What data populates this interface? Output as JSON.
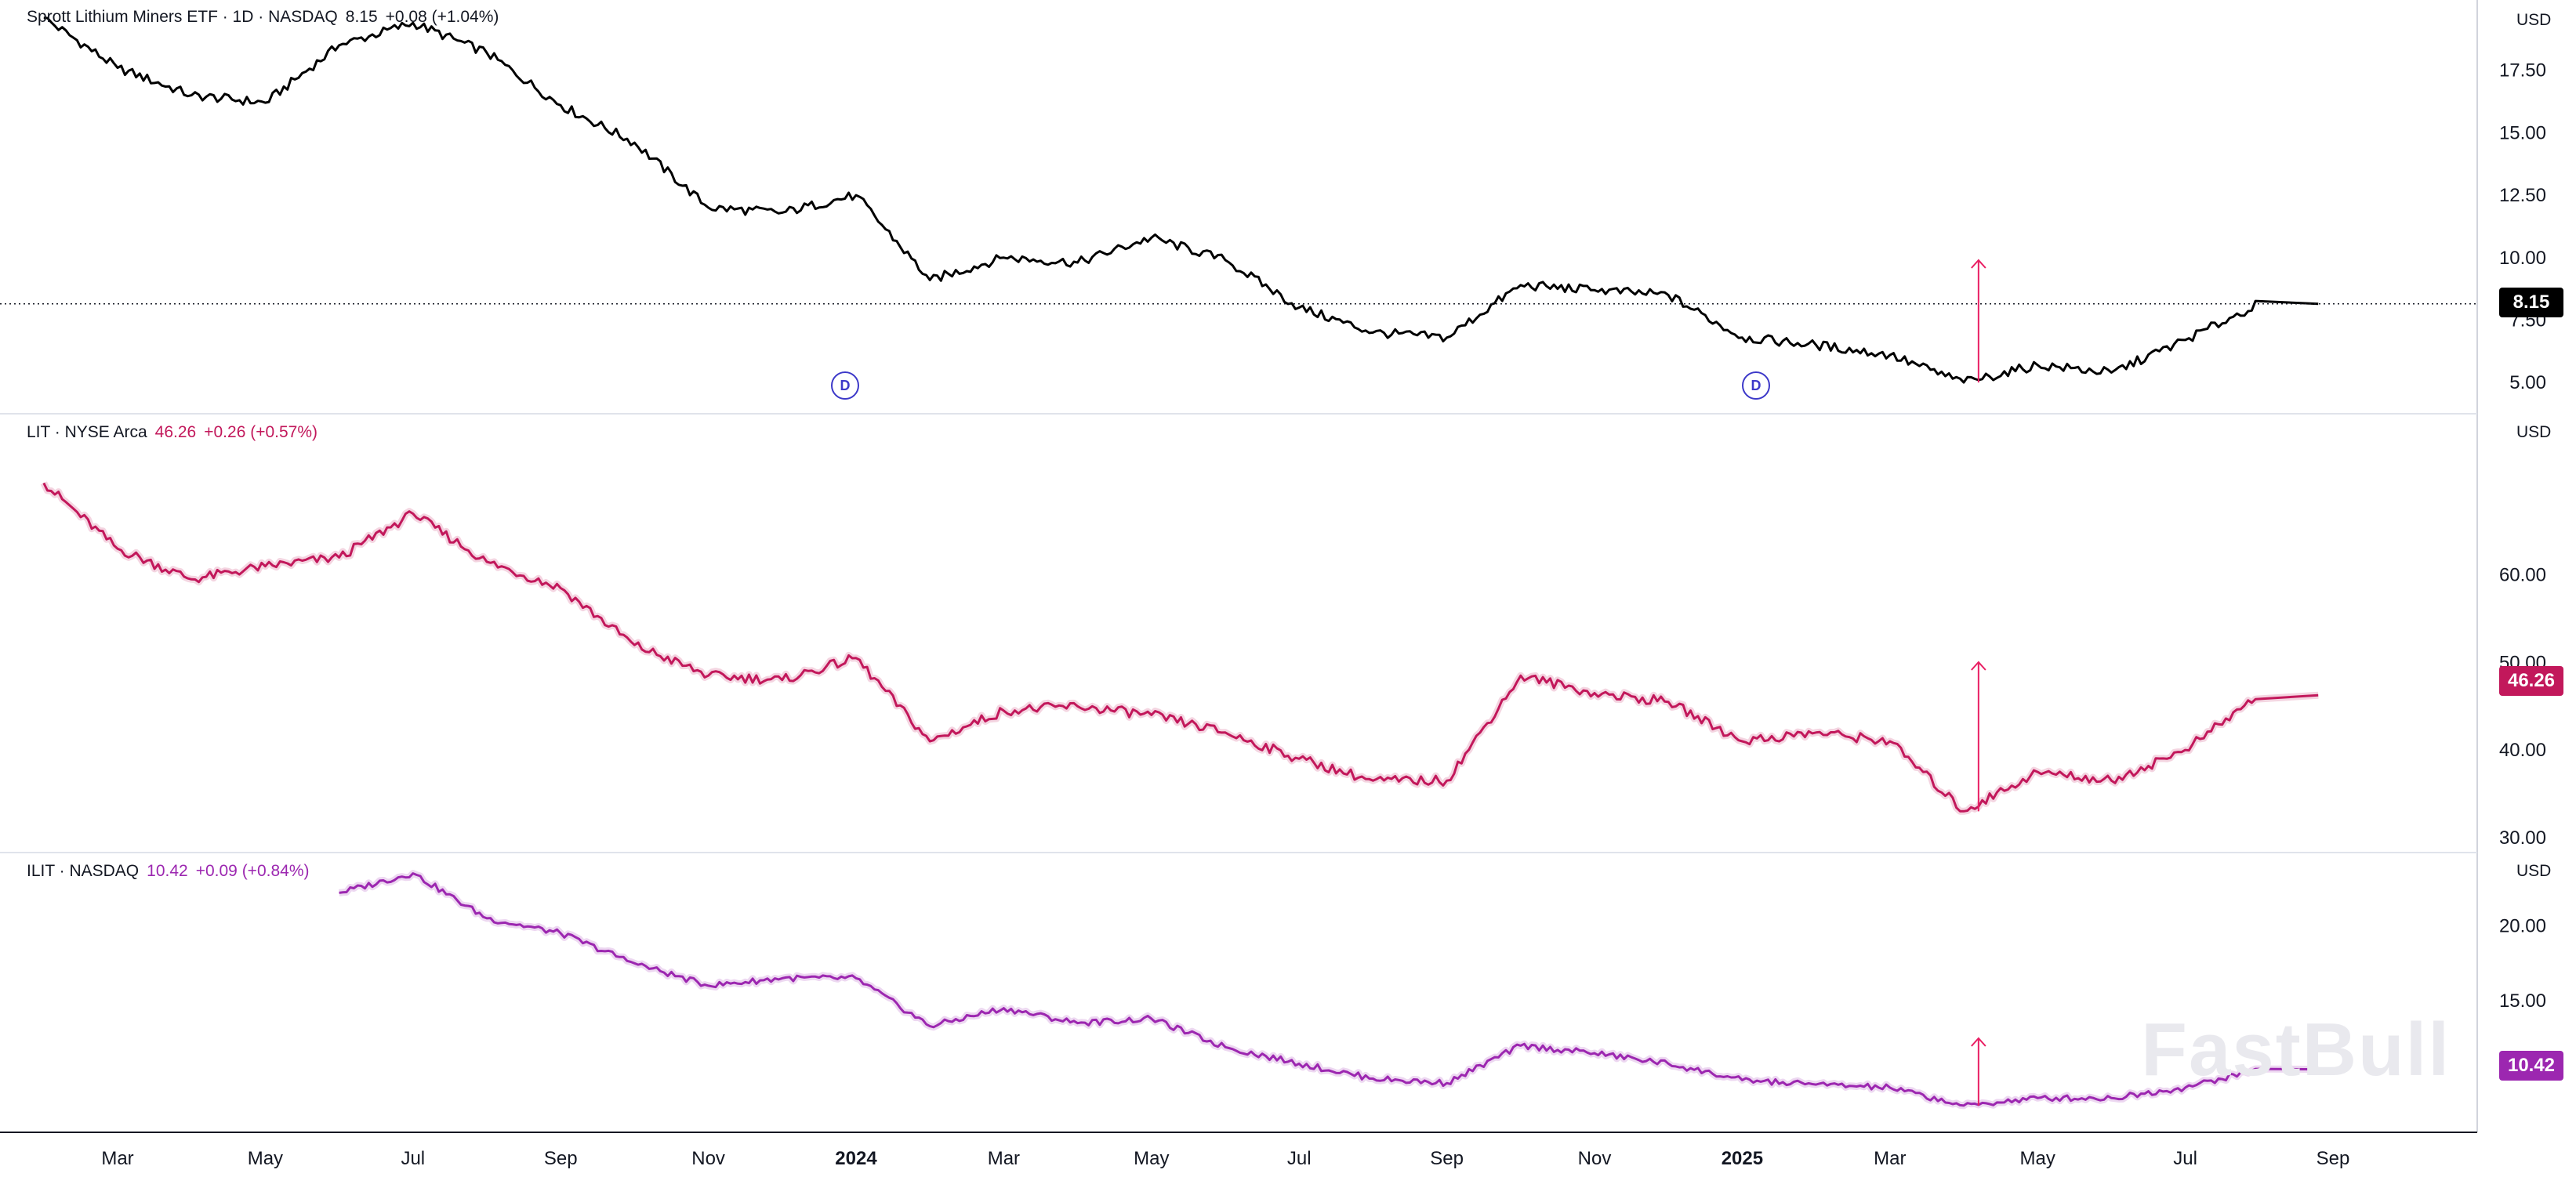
{
  "panes": [
    {
      "legend": {
        "name": "Sprott Lithium Miners ETF · 1D · NASDAQ",
        "last": "8.15",
        "change": "+0.08 (+1.04%)"
      },
      "currency": "USD",
      "y_ticks": [
        "17.50",
        "15.00",
        "12.50",
        "10.00",
        "7.50",
        "5.00"
      ],
      "price_tag": "8.15",
      "color": "#000000"
    },
    {
      "legend": {
        "name": "LIT · NYSE Arca",
        "last": "46.26",
        "change": "+0.26 (+0.57%)"
      },
      "currency": "USD",
      "y_ticks": [
        "60.00",
        "50.00",
        "40.00",
        "30.00"
      ],
      "price_tag": "46.26",
      "color": "#c2185b"
    },
    {
      "legend": {
        "name": "ILIT · NASDAQ",
        "last": "10.42",
        "change": "+0.09 (+0.84%)"
      },
      "currency": "USD",
      "y_ticks": [
        "20.00",
        "15.00"
      ],
      "price_tag": "10.42",
      "color": "#9c27b0"
    }
  ],
  "x_ticks": [
    "Mar",
    "May",
    "Jul",
    "Sep",
    "Nov",
    "2024",
    "Mar",
    "May",
    "Jul",
    "Sep",
    "Nov",
    "2025",
    "Mar",
    "May",
    "Jul",
    "Sep"
  ],
  "dividend_marker": "D",
  "watermark": "FastBull",
  "chart_data": [
    {
      "type": "line",
      "title": "Sprott Lithium Miners ETF · 1D · NASDAQ",
      "ylim": [
        4.0,
        20.0
      ],
      "x": [
        "2023-02",
        "2023-03",
        "2023-04",
        "2023-05",
        "2023-06",
        "2023-07",
        "2023-08",
        "2023-09",
        "2023-10",
        "2023-11",
        "2023-12",
        "2024-01",
        "2024-02",
        "2024-03",
        "2024-04",
        "2024-05",
        "2024-06",
        "2024-07",
        "2024-08",
        "2024-09",
        "2024-10",
        "2024-11",
        "2024-12",
        "2025-01",
        "2025-02",
        "2025-03",
        "2025-04",
        "2025-05",
        "2025-06",
        "2025-07",
        "2025-08"
      ],
      "values": [
        19.6,
        17.6,
        16.5,
        16.2,
        18.5,
        19.4,
        18.2,
        16.1,
        14.6,
        12.0,
        11.8,
        12.5,
        9.1,
        10.0,
        9.8,
        10.8,
        9.9,
        8.0,
        7.0,
        6.8,
        8.9,
        8.7,
        8.5,
        6.8,
        6.5,
        6.1,
        5.0,
        5.7,
        5.4,
        6.7,
        8.15
      ]
    },
    {
      "type": "line",
      "title": "LIT · NYSE Arca",
      "ylim": [
        29.0,
        76.0
      ],
      "x": [
        "2023-02",
        "2023-03",
        "2023-04",
        "2023-05",
        "2023-06",
        "2023-07",
        "2023-08",
        "2023-09",
        "2023-10",
        "2023-11",
        "2023-12",
        "2024-01",
        "2024-02",
        "2024-03",
        "2024-04",
        "2024-05",
        "2024-06",
        "2024-07",
        "2024-08",
        "2024-09",
        "2024-10",
        "2024-11",
        "2024-12",
        "2025-01",
        "2025-02",
        "2025-03",
        "2025-04",
        "2025-05",
        "2025-06",
        "2025-07",
        "2025-08"
      ],
      "values": [
        70.5,
        63.0,
        59.5,
        61.0,
        62.0,
        67.0,
        61.5,
        58.5,
        52.0,
        48.5,
        48.0,
        50.5,
        41.0,
        44.5,
        45.0,
        44.0,
        42.0,
        39.0,
        36.5,
        36.5,
        48.5,
        46.5,
        45.5,
        41.0,
        42.0,
        41.0,
        33.0,
        37.5,
        36.5,
        40.0,
        46.26
      ]
    },
    {
      "type": "line",
      "title": "ILIT · NASDAQ",
      "ylim": [
        7.0,
        24.0
      ],
      "x": [
        "2023-06",
        "2023-07",
        "2023-08",
        "2023-09",
        "2023-10",
        "2023-11",
        "2023-12",
        "2024-01",
        "2024-02",
        "2024-03",
        "2024-04",
        "2024-05",
        "2024-06",
        "2024-07",
        "2024-08",
        "2024-09",
        "2024-10",
        "2024-11",
        "2024-12",
        "2025-01",
        "2025-02",
        "2025-03",
        "2025-04",
        "2025-05",
        "2025-06",
        "2025-07",
        "2025-08"
      ],
      "values": [
        22.2,
        23.5,
        20.5,
        19.5,
        17.5,
        16.0,
        16.5,
        16.5,
        13.3,
        14.5,
        13.5,
        13.8,
        11.9,
        10.8,
        9.8,
        9.5,
        12.0,
        11.5,
        10.8,
        9.7,
        9.4,
        9.2,
        8.0,
        8.5,
        8.5,
        9.2,
        10.42
      ]
    }
  ]
}
